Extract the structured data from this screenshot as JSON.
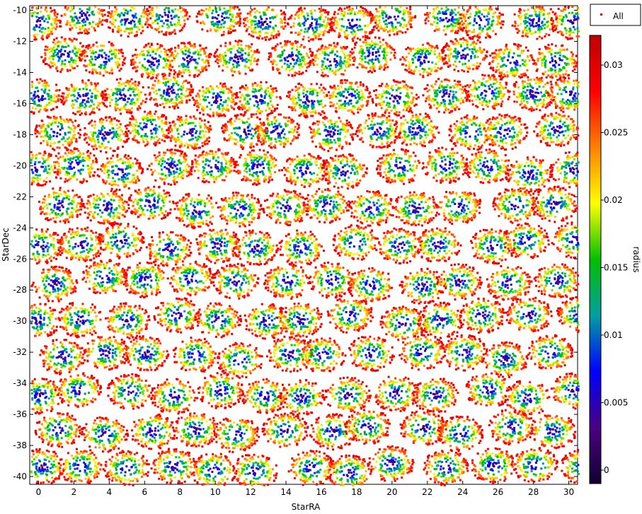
{
  "chart_data": {
    "type": "scatter",
    "xlabel": "StarRA",
    "ylabel": "StarDec",
    "xlim": [
      -0.5,
      30.5
    ],
    "ylim": [
      -40.5,
      -9.7
    ],
    "x_ticks": [
      0,
      2,
      4,
      6,
      8,
      10,
      12,
      14,
      16,
      18,
      20,
      22,
      24,
      26,
      28,
      30
    ],
    "y_ticks": [
      -10,
      -12,
      -14,
      -16,
      -18,
      -20,
      -22,
      -24,
      -26,
      -28,
      -30,
      -32,
      -34,
      -36,
      -38,
      -40
    ],
    "legend": {
      "entries": [
        "All"
      ],
      "placement": "top-right"
    },
    "colorbar": {
      "label": "radius",
      "range": [
        -0.001,
        0.0322
      ],
      "ticks": [
        0,
        0.005,
        0.01,
        0.015,
        0.02,
        0.025,
        0.03
      ],
      "colormap": [
        "#100030",
        "#4b0082",
        "#0000ff",
        "#00a0a0",
        "#00c000",
        "#ffff00",
        "#ff8000",
        "#ff0000",
        "#c00000"
      ]
    },
    "grid": false,
    "point_color_encoding": "radius",
    "clusters_description_in_script": true
  }
}
